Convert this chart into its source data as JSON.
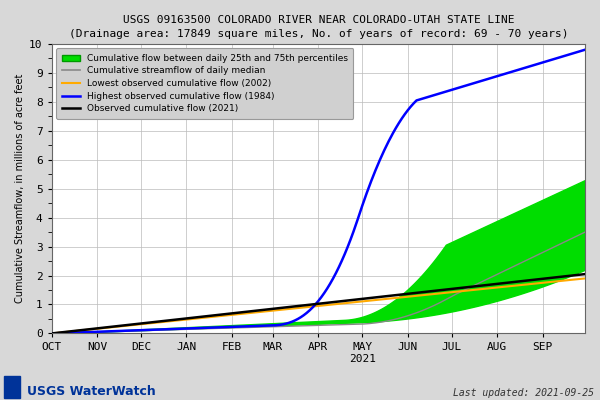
{
  "title": "USGS 09163500 COLORADO RIVER NEAR COLORADO-UTAH STATE LINE",
  "subtitle": "(Drainage area: 17849 square miles, No. of years of record: 69 - 70 years)",
  "ylabel": "Cumulative Streamflow, in millions of acre feet",
  "xlabel_months": [
    "OCT",
    "NOV",
    "DEC",
    "JAN",
    "FEB",
    "MAR",
    "APR",
    "MAY",
    "JUN",
    "JUL",
    "AUG",
    "SEP"
  ],
  "xlabel_year": "2021",
  "ylim": [
    0,
    10.0
  ],
  "yticks": [
    0,
    1,
    2,
    3,
    4,
    5,
    6,
    7,
    8,
    9,
    10
  ],
  "last_updated": "Last updated: 2021-09-25",
  "bg_color": "#d8d8d8",
  "plot_bg": "#ffffff",
  "legend_bg": "#d0d0d0",
  "green_fill": "#00dd00",
  "green_median": "#888888",
  "orange_low": "#ffaa00",
  "blue_high": "#0000ff",
  "black_obs": "#000000",
  "month_days": [
    31,
    30,
    31,
    31,
    28,
    31,
    30,
    31,
    30,
    31,
    31,
    30
  ]
}
